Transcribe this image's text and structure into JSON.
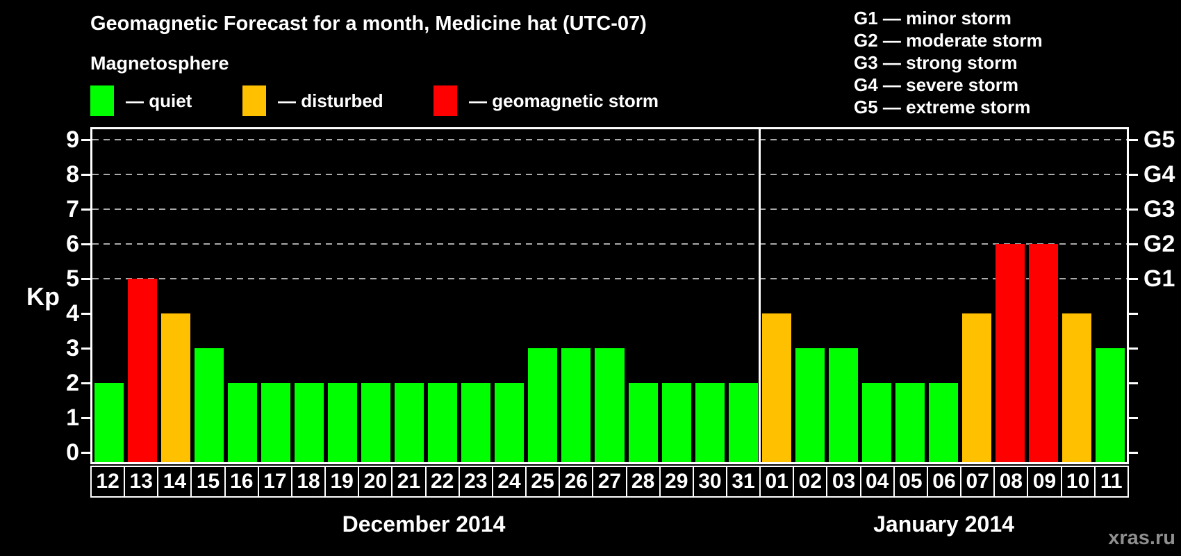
{
  "title": "Geomagnetic Forecast for a month, Medicine hat (UTC-07)",
  "legend": {
    "heading": "Magnetosphere",
    "items": [
      {
        "name": "quiet",
        "label": "— quiet",
        "color": "#00FF00"
      },
      {
        "name": "disturbed",
        "label": "— disturbed",
        "color": "#FFC000"
      },
      {
        "name": "storm",
        "label": "— geomagnetic storm",
        "color": "#FF0000"
      }
    ]
  },
  "g_scale_legend": [
    "G1 — minor storm",
    "G2 — moderate storm",
    "G3 — strong storm",
    "G4 — severe storm",
    "G5 — extreme storm"
  ],
  "watermark": "xras.ru",
  "chart_data": {
    "type": "bar",
    "title": "Geomagnetic Forecast for a month, Medicine hat (UTC-07)",
    "ylabel": "Kp",
    "ylim": [
      0,
      9
    ],
    "y_ticks": [
      0,
      1,
      2,
      3,
      4,
      5,
      6,
      7,
      8,
      9
    ],
    "gridlines_at_kp": [
      5,
      6,
      7,
      8,
      9
    ],
    "grid_style": "dashed",
    "right_axis_labels": [
      {
        "text": "G1",
        "kp": 5
      },
      {
        "text": "G2",
        "kp": 6
      },
      {
        "text": "G3",
        "kp": 7
      },
      {
        "text": "G4",
        "kp": 8
      },
      {
        "text": "G5",
        "kp": 9
      }
    ],
    "status_colors": {
      "quiet": "#00FF00",
      "disturbed": "#FFC000",
      "storm": "#FF0000"
    },
    "groups": [
      {
        "label": "December 2014",
        "days": [
          "12",
          "13",
          "14",
          "15",
          "16",
          "17",
          "18",
          "19",
          "20",
          "21",
          "22",
          "23",
          "24",
          "25",
          "26",
          "27",
          "28",
          "29",
          "30",
          "31"
        ],
        "values": [
          2,
          5,
          4,
          3,
          2,
          2,
          2,
          2,
          2,
          2,
          2,
          2,
          2,
          3,
          3,
          3,
          2,
          2,
          2,
          2
        ],
        "statuses": [
          "quiet",
          "storm",
          "disturbed",
          "quiet",
          "quiet",
          "quiet",
          "quiet",
          "quiet",
          "quiet",
          "quiet",
          "quiet",
          "quiet",
          "quiet",
          "quiet",
          "quiet",
          "quiet",
          "quiet",
          "quiet",
          "quiet",
          "quiet"
        ]
      },
      {
        "label": "January 2014",
        "days": [
          "01",
          "02",
          "03",
          "04",
          "05",
          "06",
          "07",
          "08",
          "09",
          "10",
          "11"
        ],
        "values": [
          4,
          3,
          3,
          2,
          2,
          2,
          4,
          6,
          6,
          4,
          3
        ],
        "statuses": [
          "disturbed",
          "quiet",
          "quiet",
          "quiet",
          "quiet",
          "quiet",
          "disturbed",
          "storm",
          "storm",
          "disturbed",
          "quiet"
        ]
      }
    ]
  }
}
